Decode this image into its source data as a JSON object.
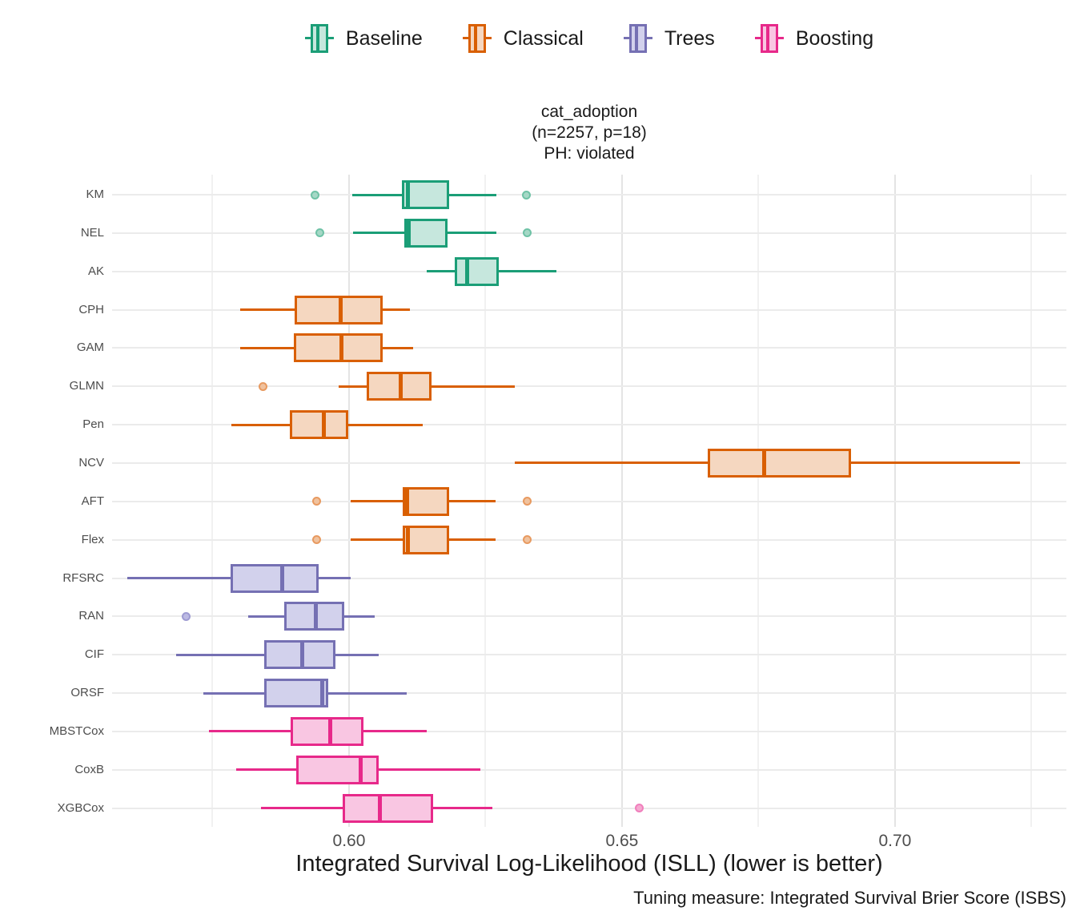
{
  "legend": {
    "items": [
      {
        "label": "Baseline",
        "color": "#1B9E77",
        "fill": "#C6E7DD"
      },
      {
        "label": "Classical",
        "color": "#D95F02",
        "fill": "#F5D7C0"
      },
      {
        "label": "Trees",
        "color": "#7570B3",
        "fill": "#D2D1EC"
      },
      {
        "label": "Boosting",
        "color": "#E7298A",
        "fill": "#F9C6E2"
      }
    ]
  },
  "header": {
    "title_line1": "cat_adoption",
    "title_line2": "(n=2257, p=18)",
    "title_line3": "PH: violated"
  },
  "axis": {
    "xlabel": "Integrated Survival Log-Likelihood (ISLL) (lower is better)",
    "x_ticks": [
      {
        "label": "0.60",
        "value": 0.6
      },
      {
        "label": "0.65",
        "value": 0.65
      },
      {
        "label": "0.70",
        "value": 0.7
      }
    ],
    "x_minor": [
      0.575,
      0.625,
      0.675,
      0.725
    ]
  },
  "caption": {
    "text": "Tuning measure: Integrated Survival Brier Score (ISBS)"
  },
  "chart_data": {
    "type": "boxplot",
    "orientation": "horizontal",
    "title": "cat_adoption (n=2257, p=18) PH: violated",
    "xlabel": "Integrated Survival Log-Likelihood (ISLL) (lower is better)",
    "xlim": [
      0.5566,
      0.7314
    ],
    "x_major_ticks": [
      0.6,
      0.65,
      0.7
    ],
    "x_minor_gridlines": [
      0.575,
      0.625,
      0.675,
      0.725
    ],
    "grid": true,
    "legend_position": "top",
    "groups": [
      {
        "name": "Baseline",
        "color": "#1B9E77",
        "fill": "#C6E7DD",
        "outlier_fill": "#A5D8C6",
        "outlier_rim": "#6FC2A6"
      },
      {
        "name": "Classical",
        "color": "#D95F02",
        "fill": "#F5D7C0",
        "outlier_fill": "#F0C29E",
        "outlier_rim": "#E89A60"
      },
      {
        "name": "Trees",
        "color": "#7570B3",
        "fill": "#D2D1EC",
        "outlier_fill": "#BCBAE3",
        "outlier_rim": "#9E9BD2"
      },
      {
        "name": "Boosting",
        "color": "#E7298A",
        "fill": "#F9C6E2",
        "outlier_fill": "#F5A9D0",
        "outlier_rim": "#F07FBC"
      }
    ],
    "series": [
      {
        "model": "KM",
        "group": "Baseline",
        "whisker_low": 0.6006,
        "q1": 0.6097,
        "median": 0.6108,
        "q3": 0.6183,
        "whisker_high": 0.627,
        "outliers": [
          0.5938,
          0.6325
        ]
      },
      {
        "model": "NEL",
        "group": "Baseline",
        "whisker_low": 0.6008,
        "q1": 0.6101,
        "median": 0.611,
        "q3": 0.618,
        "whisker_high": 0.627,
        "outliers": [
          0.5946,
          0.6326
        ]
      },
      {
        "model": "AK",
        "group": "Baseline",
        "whisker_low": 0.6142,
        "q1": 0.6193,
        "median": 0.6216,
        "q3": 0.6275,
        "whisker_high": 0.638,
        "outliers": []
      },
      {
        "model": "CPH",
        "group": "Classical",
        "whisker_low": 0.58,
        "q1": 0.5901,
        "median": 0.5985,
        "q3": 0.6061,
        "whisker_high": 0.6112,
        "outliers": []
      },
      {
        "model": "GAM",
        "group": "Classical",
        "whisker_low": 0.58,
        "q1": 0.5899,
        "median": 0.5986,
        "q3": 0.6061,
        "whisker_high": 0.6118,
        "outliers": []
      },
      {
        "model": "GLMN",
        "group": "Classical",
        "whisker_low": 0.5981,
        "q1": 0.6032,
        "median": 0.6095,
        "q3": 0.6151,
        "whisker_high": 0.6303,
        "outliers": [
          0.5842
        ]
      },
      {
        "model": "Pen",
        "group": "Classical",
        "whisker_low": 0.5785,
        "q1": 0.5892,
        "median": 0.5954,
        "q3": 0.5999,
        "whisker_high": 0.6135,
        "outliers": []
      },
      {
        "model": "NCV",
        "group": "Classical",
        "whisker_low": 0.6303,
        "q1": 0.6657,
        "median": 0.676,
        "q3": 0.6919,
        "whisker_high": 0.7229,
        "outliers": []
      },
      {
        "model": "AFT",
        "group": "Classical",
        "whisker_low": 0.6003,
        "q1": 0.6098,
        "median": 0.6107,
        "q3": 0.6184,
        "whisker_high": 0.6269,
        "outliers": [
          0.5941,
          0.6326
        ]
      },
      {
        "model": "Flex",
        "group": "Classical",
        "whisker_low": 0.6003,
        "q1": 0.6098,
        "median": 0.6108,
        "q3": 0.6184,
        "whisker_high": 0.6269,
        "outliers": [
          0.5941,
          0.6326
        ]
      },
      {
        "model": "RFSRC",
        "group": "Trees",
        "whisker_low": 0.5594,
        "q1": 0.5783,
        "median": 0.5877,
        "q3": 0.5945,
        "whisker_high": 0.6003,
        "outliers": []
      },
      {
        "model": "RAN",
        "group": "Trees",
        "whisker_low": 0.5815,
        "q1": 0.5881,
        "median": 0.5939,
        "q3": 0.5991,
        "whisker_high": 0.6047,
        "outliers": [
          0.5701
        ]
      },
      {
        "model": "CIF",
        "group": "Trees",
        "whisker_low": 0.5683,
        "q1": 0.5845,
        "median": 0.5914,
        "q3": 0.5975,
        "whisker_high": 0.6055,
        "outliers": []
      },
      {
        "model": "ORSF",
        "group": "Trees",
        "whisker_low": 0.5733,
        "q1": 0.5844,
        "median": 0.5951,
        "q3": 0.5962,
        "whisker_high": 0.6106,
        "outliers": []
      },
      {
        "model": "MBSTCox",
        "group": "Boosting",
        "whisker_low": 0.5744,
        "q1": 0.5893,
        "median": 0.5966,
        "q3": 0.6026,
        "whisker_high": 0.6142,
        "outliers": []
      },
      {
        "model": "CoxB",
        "group": "Boosting",
        "whisker_low": 0.5793,
        "q1": 0.5903,
        "median": 0.6022,
        "q3": 0.6055,
        "whisker_high": 0.624,
        "outliers": []
      },
      {
        "model": "XGBCox",
        "group": "Boosting",
        "whisker_low": 0.5839,
        "q1": 0.5988,
        "median": 0.6056,
        "q3": 0.6154,
        "whisker_high": 0.6262,
        "outliers": [
          0.6531
        ]
      }
    ]
  }
}
